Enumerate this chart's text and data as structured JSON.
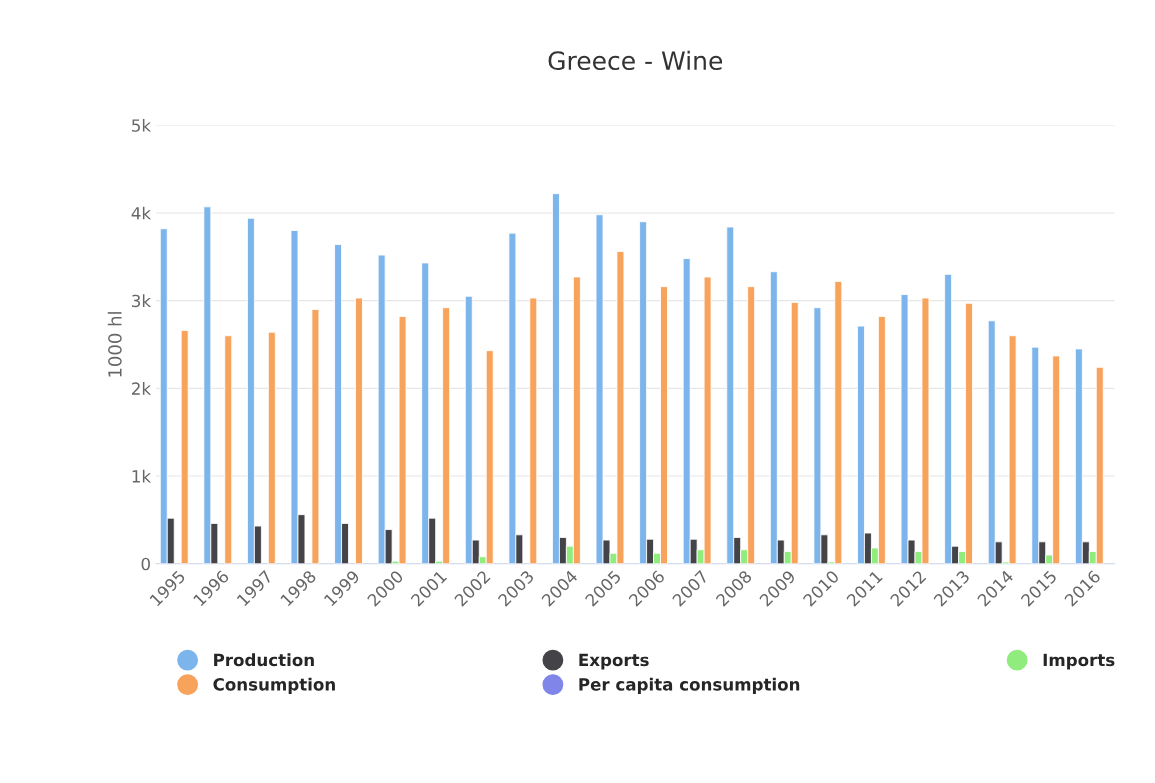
{
  "chart_data": {
    "type": "bar",
    "title": "Greece - Wine",
    "ylabel": "1000 hl",
    "categories": [
      "1995",
      "1996",
      "1997",
      "1998",
      "1999",
      "2000",
      "2001",
      "2002",
      "2003",
      "2004",
      "2005",
      "2006",
      "2007",
      "2008",
      "2009",
      "2010",
      "2011",
      "2012",
      "2013",
      "2014",
      "2015",
      "2016"
    ],
    "series": [
      {
        "name": "Production",
        "color": "#7cb5ec",
        "values": [
          3820,
          4070,
          3940,
          3800,
          3640,
          3520,
          3430,
          3050,
          3770,
          4220,
          3980,
          3900,
          3480,
          3840,
          3330,
          2920,
          2710,
          3070,
          3300,
          2770,
          2470,
          2450
        ]
      },
      {
        "name": "Exports",
        "color": "#434348",
        "values": [
          520,
          460,
          430,
          560,
          460,
          390,
          520,
          270,
          330,
          300,
          270,
          280,
          280,
          300,
          270,
          330,
          350,
          270,
          200,
          250,
          250,
          250
        ]
      },
      {
        "name": "Imports",
        "color": "#90ed7d",
        "values": [
          null,
          null,
          null,
          null,
          null,
          30,
          30,
          80,
          null,
          200,
          120,
          120,
          160,
          160,
          140,
          20,
          180,
          140,
          140,
          20,
          100,
          140
        ]
      },
      {
        "name": "Consumption",
        "color": "#f7a35c",
        "values": [
          2660,
          2600,
          2640,
          2900,
          3030,
          2820,
          2920,
          2430,
          3030,
          3270,
          3560,
          3160,
          3270,
          3160,
          2980,
          3220,
          2820,
          3030,
          2970,
          2600,
          2370,
          2240
        ]
      },
      {
        "name": "Per capita consumption",
        "color": "#8085e9",
        "values": [
          null,
          null,
          null,
          null,
          null,
          null,
          null,
          null,
          null,
          null,
          null,
          null,
          null,
          null,
          null,
          null,
          null,
          null,
          null,
          null,
          null,
          null
        ]
      }
    ],
    "ylim": [
      0,
      5000
    ],
    "yticks": [
      {
        "value": 0,
        "label": "0"
      },
      {
        "value": 1000,
        "label": "1k"
      },
      {
        "value": 2000,
        "label": "2k"
      },
      {
        "value": 3000,
        "label": "3k"
      },
      {
        "value": 4000,
        "label": "4k"
      },
      {
        "value": 5000,
        "label": "5k"
      }
    ],
    "grid": "y",
    "legend": "bottom"
  }
}
